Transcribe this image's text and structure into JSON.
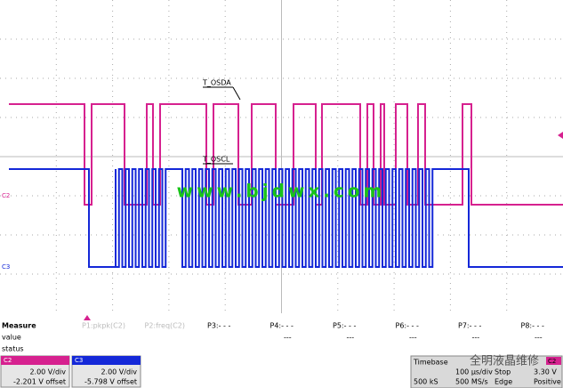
{
  "screen": {
    "labels": [
      "T_OSDA",
      "T_OSCL"
    ],
    "channels": [
      "C2",
      "C3"
    ],
    "watermark": "www.bjdwx.com"
  },
  "measure": {
    "title": "Measure",
    "rows": [
      "value",
      "status"
    ],
    "params": [
      {
        "name": "P1:pkpk(C2)",
        "value": ""
      },
      {
        "name": "P2:freq(C2)",
        "value": ""
      },
      {
        "name": "P3:- - -",
        "value": "---"
      },
      {
        "name": "P4:- - -",
        "value": "---"
      },
      {
        "name": "P5:- - -",
        "value": "---"
      },
      {
        "name": "P6:- - -",
        "value": "---"
      },
      {
        "name": "P7:- - -",
        "value": "---"
      },
      {
        "name": "P8:- - -",
        "value": "---"
      }
    ]
  },
  "channel_boxes": [
    {
      "channel": "C2",
      "scale": "2.00 V/div",
      "offset": "-2.201 V offset"
    },
    {
      "channel": "C3",
      "scale": "2.00 V/div",
      "offset": "-5.798 V offset"
    }
  ],
  "timebase": {
    "label": "Timebase",
    "div": "100 µs/div",
    "samples": "500 kS",
    "rate": "500 MS/s"
  },
  "trigger": {
    "channel": "C2",
    "mode": "Stop",
    "level": "3.30 V",
    "type": "Edge",
    "slope": "Positive"
  },
  "corner_watermark": "全明液晶维修"
}
